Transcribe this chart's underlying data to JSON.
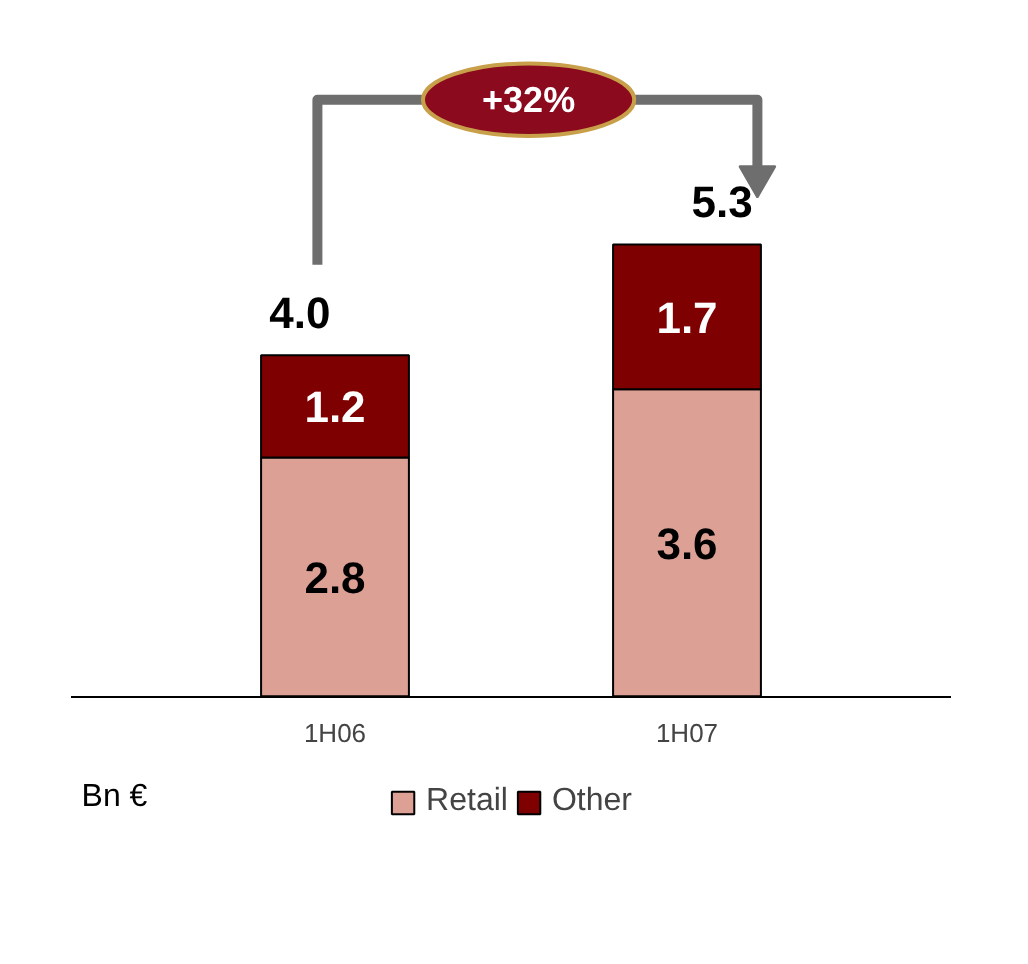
{
  "chart_data": {
    "type": "bar",
    "stacked": true,
    "categories": [
      "1H06",
      "1H07"
    ],
    "series": [
      {
        "name": "Retail",
        "color": "#dca095",
        "values": [
          2.8,
          3.6
        ]
      },
      {
        "name": "Other",
        "color": "#7f0000",
        "values": [
          1.2,
          1.7
        ]
      }
    ],
    "data_labels": true,
    "totals": [
      "4.0",
      "5.3"
    ],
    "legend": "bottom",
    "grid": false,
    "annotations": [
      "+32%",
      "Bn €"
    ]
  }
}
